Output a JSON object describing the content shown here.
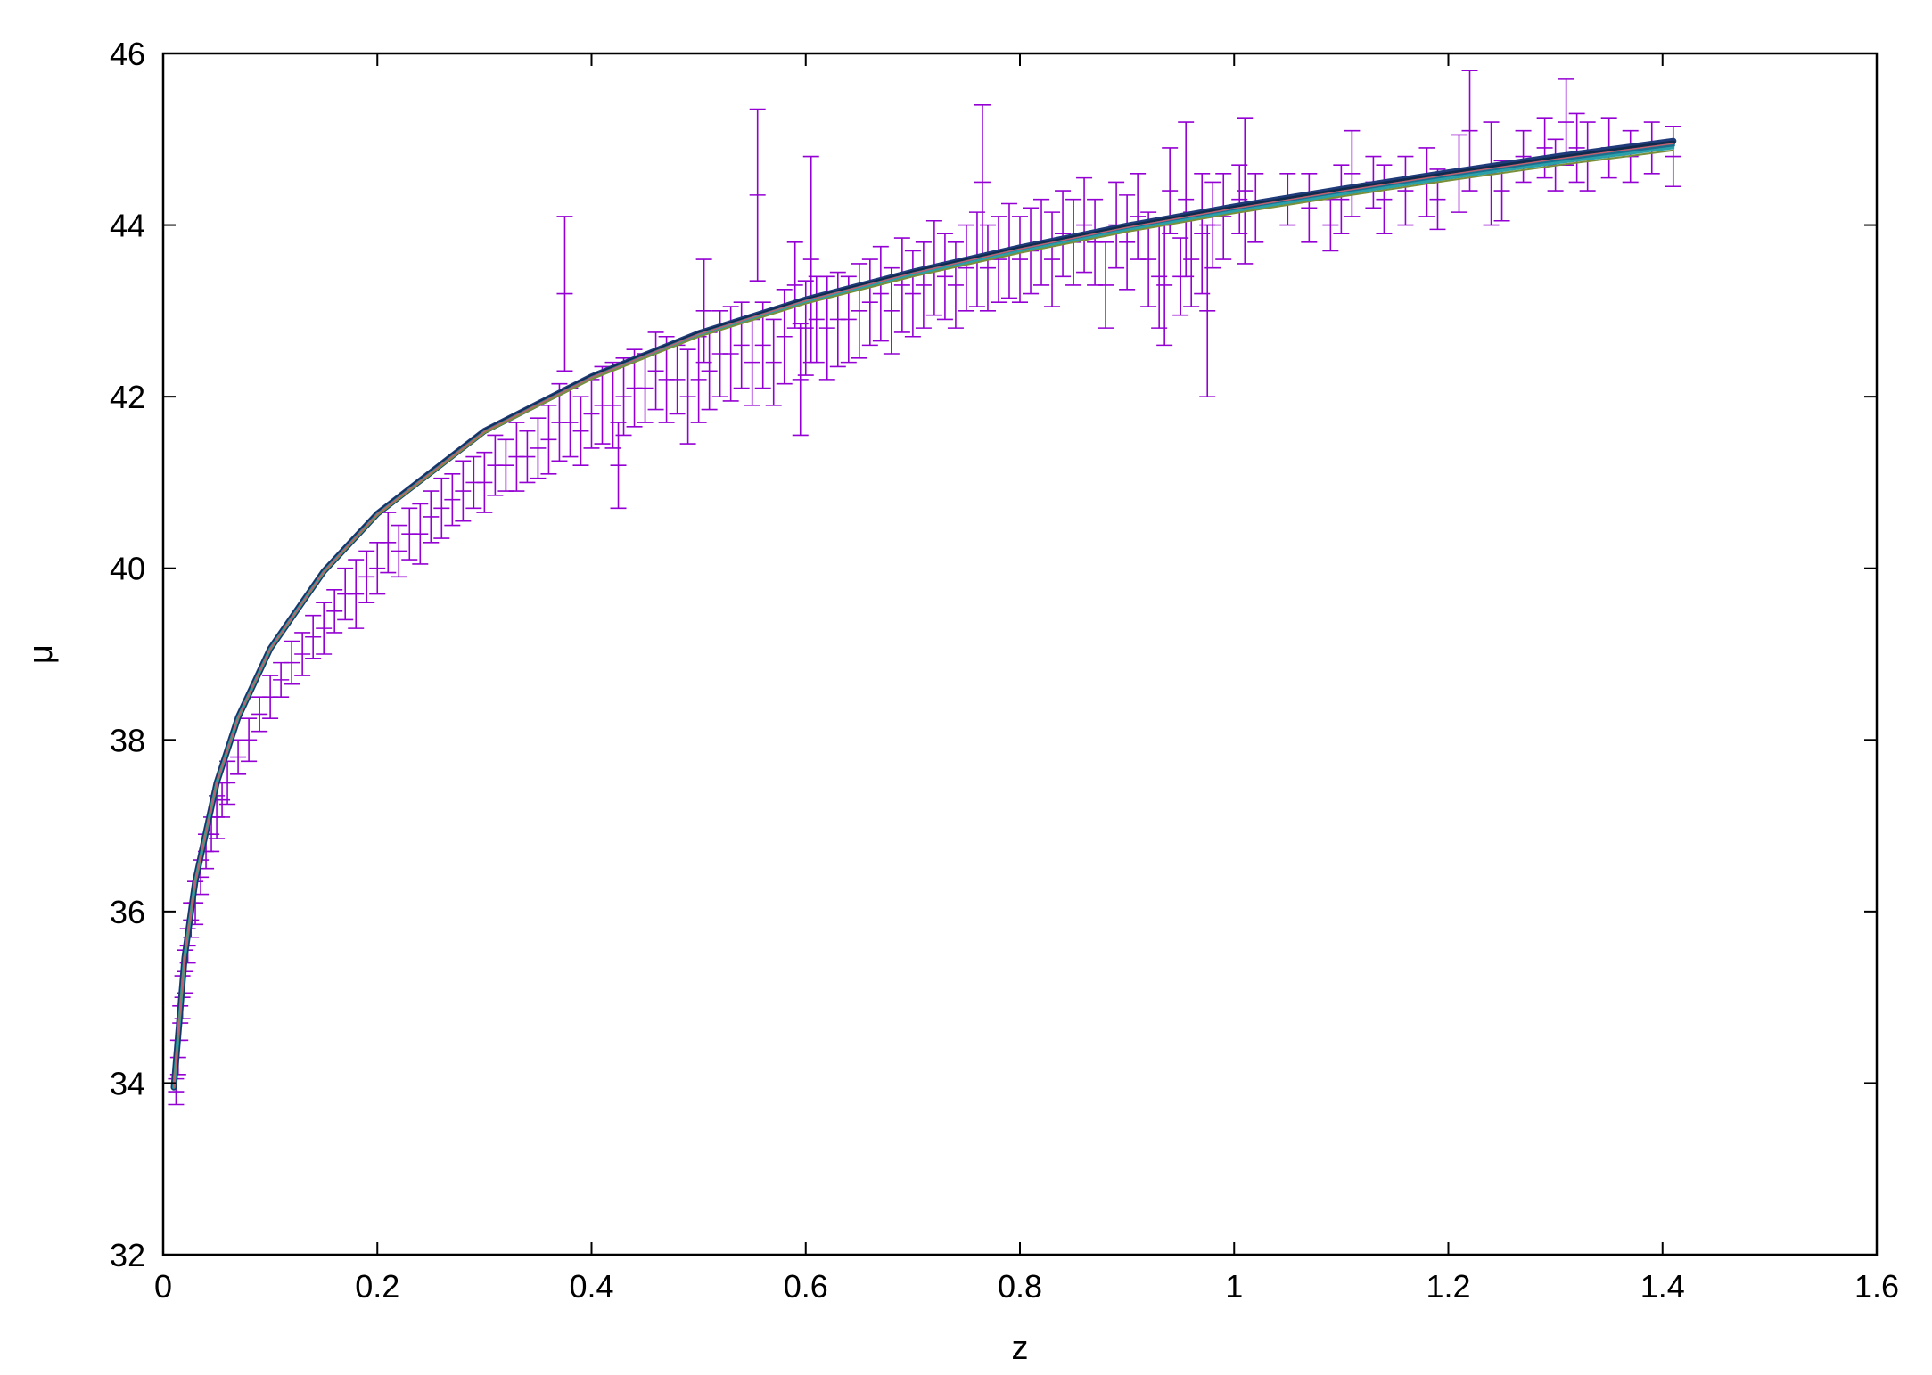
{
  "chart_data": {
    "type": "scatter",
    "title": "",
    "xlabel": "z",
    "ylabel": "μ",
    "xlim": [
      0,
      1.6
    ],
    "ylim": [
      32,
      46
    ],
    "x_ticks": [
      "0",
      "0.2",
      "0.4",
      "0.6",
      "0.8",
      "1",
      "1.2",
      "1.4",
      "1.6"
    ],
    "y_ticks": [
      "32",
      "34",
      "36",
      "38",
      "40",
      "42",
      "44",
      "46"
    ],
    "grid": false,
    "legend": "none",
    "colors": {
      "points": "#9400d3",
      "model_curves": [
        "#1f3b7a",
        "#0f2a4a",
        "#1a6f8f",
        "#2aa0a8",
        "#7a8f3a",
        "#c06070"
      ]
    },
    "series": [
      {
        "kind": "errorbar-points",
        "points": [
          [
            0.012,
            33.9,
            0.15
          ],
          [
            0.014,
            34.3,
            0.2
          ],
          [
            0.016,
            34.7,
            0.2
          ],
          [
            0.018,
            35.0,
            0.25
          ],
          [
            0.02,
            35.3,
            0.25
          ],
          [
            0.023,
            35.6,
            0.2
          ],
          [
            0.026,
            35.9,
            0.2
          ],
          [
            0.03,
            36.1,
            0.25
          ],
          [
            0.035,
            36.4,
            0.2
          ],
          [
            0.04,
            36.7,
            0.2
          ],
          [
            0.045,
            36.9,
            0.2
          ],
          [
            0.05,
            37.1,
            0.25
          ],
          [
            0.055,
            37.3,
            0.2
          ],
          [
            0.06,
            37.5,
            0.25
          ],
          [
            0.07,
            37.8,
            0.2
          ],
          [
            0.08,
            38.0,
            0.25
          ],
          [
            0.09,
            38.3,
            0.2
          ],
          [
            0.1,
            38.5,
            0.25
          ],
          [
            0.11,
            38.7,
            0.2
          ],
          [
            0.12,
            38.9,
            0.25
          ],
          [
            0.13,
            39.0,
            0.25
          ],
          [
            0.14,
            39.2,
            0.25
          ],
          [
            0.15,
            39.3,
            0.3
          ],
          [
            0.16,
            39.5,
            0.25
          ],
          [
            0.17,
            39.7,
            0.3
          ],
          [
            0.18,
            39.7,
            0.4
          ],
          [
            0.19,
            39.9,
            0.3
          ],
          [
            0.2,
            40.0,
            0.3
          ],
          [
            0.21,
            40.3,
            0.35
          ],
          [
            0.22,
            40.2,
            0.3
          ],
          [
            0.23,
            40.4,
            0.3
          ],
          [
            0.24,
            40.4,
            0.35
          ],
          [
            0.25,
            40.6,
            0.3
          ],
          [
            0.26,
            40.7,
            0.35
          ],
          [
            0.27,
            40.8,
            0.3
          ],
          [
            0.28,
            40.9,
            0.35
          ],
          [
            0.29,
            41.0,
            0.3
          ],
          [
            0.3,
            41.0,
            0.35
          ],
          [
            0.31,
            41.2,
            0.35
          ],
          [
            0.32,
            41.2,
            0.3
          ],
          [
            0.33,
            41.3,
            0.4
          ],
          [
            0.34,
            41.3,
            0.3
          ],
          [
            0.35,
            41.4,
            0.35
          ],
          [
            0.36,
            41.5,
            0.4
          ],
          [
            0.37,
            41.7,
            0.45
          ],
          [
            0.375,
            43.2,
            0.9
          ],
          [
            0.38,
            41.7,
            0.4
          ],
          [
            0.39,
            41.6,
            0.4
          ],
          [
            0.4,
            41.8,
            0.4
          ],
          [
            0.41,
            41.9,
            0.45
          ],
          [
            0.42,
            41.9,
            0.5
          ],
          [
            0.425,
            41.2,
            0.5
          ],
          [
            0.43,
            42.0,
            0.45
          ],
          [
            0.44,
            42.1,
            0.45
          ],
          [
            0.45,
            42.1,
            0.4
          ],
          [
            0.46,
            42.3,
            0.45
          ],
          [
            0.47,
            42.2,
            0.5
          ],
          [
            0.48,
            42.2,
            0.4
          ],
          [
            0.49,
            42.0,
            0.55
          ],
          [
            0.5,
            42.2,
            0.5
          ],
          [
            0.505,
            43.0,
            0.6
          ],
          [
            0.51,
            42.3,
            0.45
          ],
          [
            0.52,
            42.5,
            0.5
          ],
          [
            0.53,
            42.5,
            0.55
          ],
          [
            0.54,
            42.6,
            0.5
          ],
          [
            0.55,
            42.4,
            0.5
          ],
          [
            0.555,
            44.35,
            1.0
          ],
          [
            0.56,
            42.6,
            0.5
          ],
          [
            0.57,
            42.4,
            0.5
          ],
          [
            0.58,
            42.7,
            0.55
          ],
          [
            0.59,
            43.3,
            0.5
          ],
          [
            0.595,
            42.2,
            0.65
          ],
          [
            0.6,
            42.8,
            0.55
          ],
          [
            0.605,
            43.6,
            1.2
          ],
          [
            0.61,
            42.9,
            0.5
          ],
          [
            0.62,
            42.8,
            0.6
          ],
          [
            0.63,
            42.9,
            0.55
          ],
          [
            0.64,
            42.9,
            0.5
          ],
          [
            0.65,
            43.0,
            0.55
          ],
          [
            0.66,
            43.1,
            0.5
          ],
          [
            0.67,
            43.2,
            0.55
          ],
          [
            0.68,
            43.0,
            0.5
          ],
          [
            0.69,
            43.3,
            0.55
          ],
          [
            0.7,
            43.2,
            0.5
          ],
          [
            0.71,
            43.3,
            0.5
          ],
          [
            0.72,
            43.5,
            0.55
          ],
          [
            0.73,
            43.4,
            0.5
          ],
          [
            0.74,
            43.3,
            0.5
          ],
          [
            0.75,
            43.5,
            0.5
          ],
          [
            0.76,
            43.6,
            0.55
          ],
          [
            0.765,
            44.5,
            0.9
          ],
          [
            0.77,
            43.5,
            0.5
          ],
          [
            0.78,
            43.6,
            0.5
          ],
          [
            0.79,
            43.7,
            0.55
          ],
          [
            0.8,
            43.6,
            0.5
          ],
          [
            0.81,
            43.7,
            0.5
          ],
          [
            0.82,
            43.8,
            0.5
          ],
          [
            0.83,
            43.6,
            0.55
          ],
          [
            0.84,
            43.9,
            0.5
          ],
          [
            0.85,
            43.8,
            0.5
          ],
          [
            0.86,
            44.0,
            0.55
          ],
          [
            0.87,
            43.8,
            0.5
          ],
          [
            0.88,
            43.3,
            0.5
          ],
          [
            0.89,
            44.0,
            0.5
          ],
          [
            0.9,
            43.8,
            0.55
          ],
          [
            0.91,
            44.1,
            0.5
          ],
          [
            0.92,
            43.6,
            0.55
          ],
          [
            0.93,
            43.4,
            0.6
          ],
          [
            0.935,
            43.3,
            0.7
          ],
          [
            0.94,
            44.4,
            0.5
          ],
          [
            0.95,
            43.4,
            0.45
          ],
          [
            0.955,
            44.3,
            0.9
          ],
          [
            0.96,
            43.6,
            0.55
          ],
          [
            0.97,
            43.9,
            0.7
          ],
          [
            0.975,
            43.0,
            1.0
          ],
          [
            0.98,
            44.0,
            0.5
          ],
          [
            0.99,
            44.1,
            0.5
          ],
          [
            1.005,
            44.3,
            0.4
          ],
          [
            1.01,
            44.4,
            0.85
          ],
          [
            1.02,
            44.2,
            0.4
          ],
          [
            1.05,
            44.3,
            0.3
          ],
          [
            1.07,
            44.2,
            0.4
          ],
          [
            1.09,
            44.0,
            0.3
          ],
          [
            1.1,
            44.3,
            0.4
          ],
          [
            1.11,
            44.6,
            0.5
          ],
          [
            1.13,
            44.5,
            0.3
          ],
          [
            1.14,
            44.3,
            0.4
          ],
          [
            1.16,
            44.4,
            0.4
          ],
          [
            1.18,
            44.5,
            0.4
          ],
          [
            1.19,
            44.3,
            0.35
          ],
          [
            1.21,
            44.6,
            0.45
          ],
          [
            1.22,
            45.1,
            0.7
          ],
          [
            1.24,
            44.6,
            0.6
          ],
          [
            1.25,
            44.4,
            0.35
          ],
          [
            1.27,
            44.8,
            0.3
          ],
          [
            1.29,
            44.9,
            0.35
          ],
          [
            1.3,
            44.7,
            0.3
          ],
          [
            1.31,
            45.2,
            0.5
          ],
          [
            1.32,
            44.9,
            0.4
          ],
          [
            1.33,
            44.8,
            0.4
          ],
          [
            1.35,
            44.9,
            0.35
          ],
          [
            1.37,
            44.8,
            0.3
          ],
          [
            1.39,
            44.9,
            0.3
          ],
          [
            1.41,
            44.8,
            0.35
          ]
        ]
      },
      {
        "kind": "model-curves",
        "x": [
          0.01,
          0.02,
          0.03,
          0.05,
          0.07,
          0.1,
          0.15,
          0.2,
          0.3,
          0.4,
          0.5,
          0.6,
          0.7,
          0.8,
          0.9,
          1.0,
          1.1,
          1.2,
          1.3,
          1.41
        ],
        "y": [
          33.95,
          35.46,
          36.35,
          37.5,
          38.26,
          39.06,
          39.96,
          40.63,
          41.59,
          42.22,
          42.72,
          43.11,
          43.43,
          43.71,
          43.96,
          44.18,
          44.38,
          44.57,
          44.75,
          44.93
        ]
      }
    ]
  }
}
